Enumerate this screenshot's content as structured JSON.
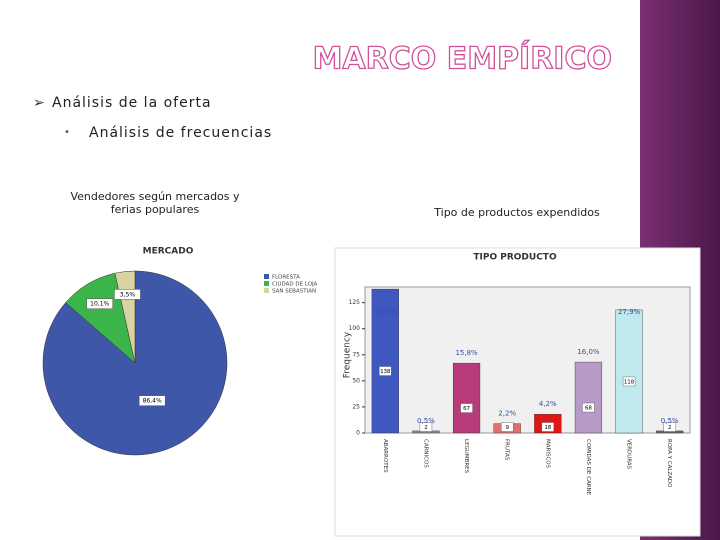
{
  "header": {
    "title": "MARCO EMPÍRICO"
  },
  "bullets": [
    "Análisis de la oferta",
    "Análisis de frecuencias"
  ],
  "captions": [
    "Vendedores según mercados y ferias populares",
    "Tipo de productos expendidos"
  ],
  "chart_data": [
    {
      "type": "pie",
      "title": "MERCADO",
      "categories": [
        "FLORESTA",
        "CIUDAD DE LOJA",
        "SAN SEBASTIAN"
      ],
      "values": [
        86.4,
        10.1,
        3.5
      ],
      "value_labels": [
        "86,4%",
        "10,1%",
        "3,5%"
      ],
      "colors": [
        "#3f57a8",
        "#3bb54a",
        "#d8d3a0"
      ]
    },
    {
      "type": "bar",
      "title": "TIPO PRODUCTO",
      "y_label": "Frequency",
      "categories": [
        "ABARROTES",
        "CARNICOS",
        "LEGUMBRES",
        "FRUTAS",
        "MARISCOS",
        "COMIDAS DE CARNE",
        "VERDURAS",
        "ROPA Y CALZADO"
      ],
      "values": [
        138,
        2,
        67,
        9,
        18,
        68,
        118,
        2
      ],
      "percent_labels": [
        "32,6%",
        "0,5%",
        "15,8%",
        "2,2%",
        "4,2%",
        "16,0%",
        "27,9%",
        "0,5%"
      ],
      "colors": [
        "#3f57c0",
        "#8a8a8a",
        "#b83c7a",
        "#e07070",
        "#e01515",
        "#b89ac8",
        "#bfe9ec",
        "#666666"
      ],
      "ylim": [
        0,
        140
      ],
      "yticks": [
        0,
        25,
        50,
        75,
        100,
        125
      ]
    }
  ]
}
